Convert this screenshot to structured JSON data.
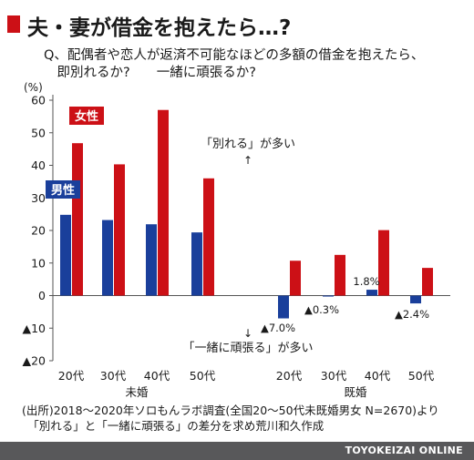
{
  "header": {
    "title": "夫・妻が借金を抱えたら…?",
    "question": "Q、配偶者や恋人が返済不可能なほどの多額の借金を抱えたら、\n　即別れるか?　　一緒に頑張るか?"
  },
  "chart_data": {
    "type": "bar",
    "ylabel": "(%)",
    "ylim": [
      -20,
      60
    ],
    "y_ticks": [
      {
        "value": 60,
        "label": "60"
      },
      {
        "value": 50,
        "label": "50"
      },
      {
        "value": 40,
        "label": "40"
      },
      {
        "value": 30,
        "label": "30"
      },
      {
        "value": 20,
        "label": "20"
      },
      {
        "value": 10,
        "label": "10"
      },
      {
        "value": 0,
        "label": "0"
      },
      {
        "value": -10,
        "label": "▲10"
      },
      {
        "value": -20,
        "label": "▲20"
      }
    ],
    "groups": [
      {
        "name": "未婚",
        "categories": [
          "20代",
          "30代",
          "40代",
          "50代"
        ]
      },
      {
        "name": "既婚",
        "categories": [
          "20代",
          "30代",
          "40代",
          "50代"
        ]
      }
    ],
    "series": [
      {
        "name": "男性",
        "color": "#1a3f9b",
        "values": [
          24.8,
          23.2,
          21.9,
          19.4,
          -7.0,
          -0.3,
          1.8,
          -2.4
        ]
      },
      {
        "name": "女性",
        "color": "#cc1016",
        "values": [
          46.8,
          40.3,
          57.0,
          36.0,
          10.7,
          12.5,
          20.1,
          8.5
        ]
      }
    ],
    "data_labels": [
      {
        "series": 0,
        "index": 4,
        "text": "▲7.0%"
      },
      {
        "series": 0,
        "index": 5,
        "text": "▲0.3%"
      },
      {
        "series": 0,
        "index": 6,
        "text": "1.8%"
      },
      {
        "series": 0,
        "index": 7,
        "text": "▲2.4%"
      }
    ],
    "annotations": {
      "up": "「別れる」が多い",
      "down": "「一緒に頑張る」が多い"
    },
    "grid": false,
    "legend": "inline labels on first bars (男性 blue, 女性 red)"
  },
  "source": "(出所)2018〜2020年ソロもんラボ調査(全国20〜50代未既婚男女 N=2670)より\n　「別れる」と「一緒に頑張る」の差分を求め荒川和久作成",
  "footer": "TOYOKEIZAI ONLINE"
}
